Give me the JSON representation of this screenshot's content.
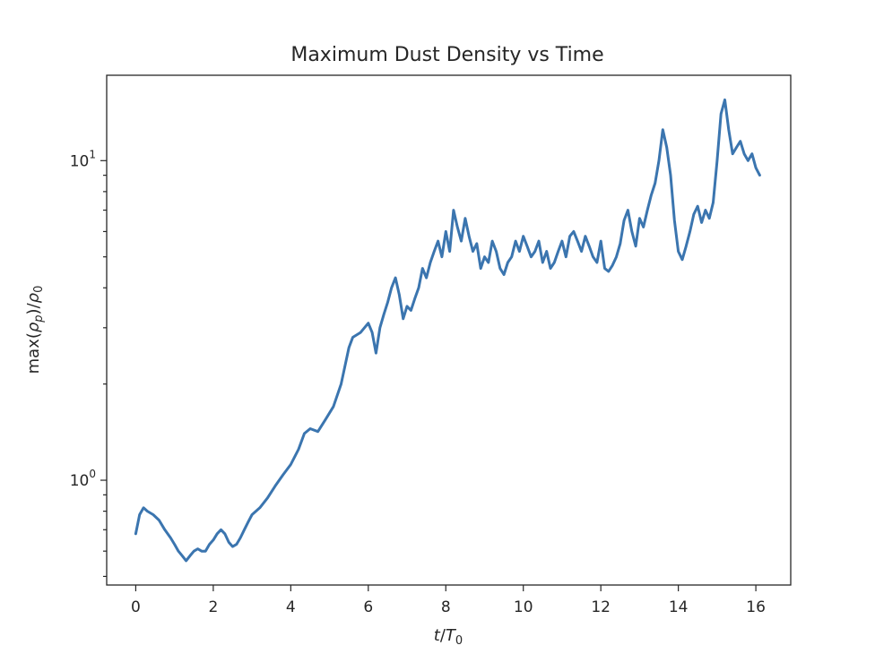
{
  "chart_data": {
    "type": "line",
    "title": "Maximum Dust Density vs Time",
    "xlabel": {
      "base": "t",
      "slash": "/",
      "T": "T",
      "sub": "0"
    },
    "ylabel": {
      "pre": "max(",
      "rho": "ρ",
      "p": "p",
      "mid": ")/",
      "rho0": "ρ",
      "zero": "0"
    },
    "x_ticks": [
      0,
      2,
      4,
      6,
      8,
      10,
      12,
      14,
      16
    ],
    "x_tick_labels": [
      "0",
      "2",
      "4",
      "6",
      "8",
      "10",
      "12",
      "14",
      "16"
    ],
    "y_scale": "log",
    "y_major_ticks": [
      {
        "value": 1,
        "base": "10",
        "exp": "0"
      },
      {
        "value": 10,
        "base": "10",
        "exp": "1"
      }
    ],
    "y_minor_ticks": [
      0.5,
      0.6,
      0.7,
      0.8,
      0.9,
      2,
      3,
      4,
      5,
      6,
      7,
      8,
      9
    ],
    "xlim": [
      -0.75,
      16.9
    ],
    "ylim": [
      0.47,
      18.5
    ],
    "grid": false,
    "series": [
      {
        "color": "#3b75af",
        "x": [
          0,
          0.1,
          0.2,
          0.3,
          0.45,
          0.6,
          0.75,
          0.9,
          1.0,
          1.1,
          1.2,
          1.3,
          1.4,
          1.5,
          1.6,
          1.7,
          1.8,
          1.9,
          2.0,
          2.1,
          2.2,
          2.3,
          2.4,
          2.5,
          2.6,
          2.7,
          2.8,
          2.9,
          3.0,
          3.2,
          3.4,
          3.6,
          3.8,
          4.0,
          4.2,
          4.35,
          4.5,
          4.7,
          4.9,
          5.1,
          5.3,
          5.5,
          5.6,
          5.8,
          6.0,
          6.1,
          6.2,
          6.3,
          6.4,
          6.5,
          6.6,
          6.7,
          6.8,
          6.9,
          7.0,
          7.1,
          7.2,
          7.3,
          7.4,
          7.5,
          7.6,
          7.7,
          7.8,
          7.9,
          8.0,
          8.1,
          8.2,
          8.3,
          8.4,
          8.5,
          8.6,
          8.7,
          8.8,
          8.9,
          9.0,
          9.1,
          9.2,
          9.3,
          9.4,
          9.5,
          9.6,
          9.7,
          9.8,
          9.9,
          10.0,
          10.1,
          10.2,
          10.3,
          10.4,
          10.5,
          10.6,
          10.7,
          10.8,
          10.9,
          11.0,
          11.1,
          11.2,
          11.3,
          11.4,
          11.5,
          11.6,
          11.7,
          11.8,
          11.9,
          12.0,
          12.1,
          12.2,
          12.3,
          12.4,
          12.5,
          12.6,
          12.7,
          12.8,
          12.9,
          13.0,
          13.1,
          13.2,
          13.3,
          13.4,
          13.5,
          13.6,
          13.7,
          13.8,
          13.9,
          14.0,
          14.1,
          14.2,
          14.3,
          14.4,
          14.5,
          14.6,
          14.7,
          14.8,
          14.9,
          15.0,
          15.1,
          15.2,
          15.3,
          15.4,
          15.5,
          15.6,
          15.7,
          15.8,
          15.9,
          16.0,
          16.1
        ],
        "y": [
          0.68,
          0.78,
          0.82,
          0.8,
          0.78,
          0.75,
          0.7,
          0.66,
          0.63,
          0.6,
          0.58,
          0.56,
          0.58,
          0.6,
          0.61,
          0.6,
          0.6,
          0.63,
          0.65,
          0.68,
          0.7,
          0.68,
          0.64,
          0.62,
          0.63,
          0.66,
          0.7,
          0.74,
          0.78,
          0.82,
          0.88,
          0.96,
          1.04,
          1.12,
          1.25,
          1.4,
          1.45,
          1.42,
          1.55,
          1.7,
          2.0,
          2.6,
          2.8,
          2.9,
          3.1,
          2.9,
          2.5,
          3.0,
          3.3,
          3.6,
          4.0,
          4.3,
          3.8,
          3.2,
          3.5,
          3.4,
          3.7,
          4.0,
          4.6,
          4.3,
          4.8,
          5.2,
          5.6,
          5.0,
          6.0,
          5.2,
          7.0,
          6.2,
          5.6,
          6.6,
          5.8,
          5.2,
          5.5,
          4.6,
          5.0,
          4.8,
          5.6,
          5.2,
          4.6,
          4.4,
          4.8,
          5.0,
          5.6,
          5.2,
          5.8,
          5.4,
          5.0,
          5.2,
          5.6,
          4.8,
          5.2,
          4.6,
          4.8,
          5.2,
          5.6,
          5.0,
          5.8,
          6.0,
          5.6,
          5.2,
          5.8,
          5.4,
          5.0,
          4.8,
          5.6,
          4.6,
          4.5,
          4.7,
          5.0,
          5.5,
          6.5,
          7.0,
          6.0,
          5.4,
          6.6,
          6.2,
          7.0,
          7.8,
          8.5,
          10.0,
          12.5,
          11.0,
          9.0,
          6.5,
          5.2,
          4.9,
          5.4,
          6.0,
          6.8,
          7.2,
          6.4,
          7.0,
          6.6,
          7.4,
          10.0,
          14.0,
          15.5,
          12.5,
          10.5,
          11.0,
          11.5,
          10.5,
          10.0,
          10.5,
          9.5,
          9.0
        ]
      }
    ]
  }
}
